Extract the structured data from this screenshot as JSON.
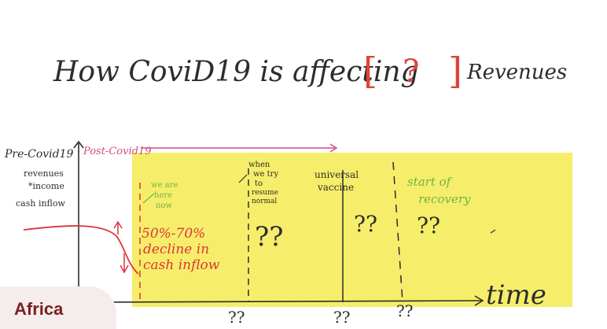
{
  "title": {
    "prefix": "How CoviD19 is affecting",
    "open_bracket": "[",
    "unknown": "?",
    "close_bracket": "]",
    "suffix": "Revenues"
  },
  "axis": {
    "pre_label": "Pre-Covid19",
    "post_label": "Post-Covid19",
    "y_label_lines": [
      "revenues",
      "*income",
      "cash inflow"
    ],
    "x_label": "time"
  },
  "phases": {
    "now": [
      "we are",
      "here",
      "now"
    ],
    "resume": [
      "when",
      "we try",
      "to",
      "resume",
      "normal"
    ],
    "vaccine": [
      "universal",
      "vaccine"
    ],
    "recovery": [
      "start of",
      "recovery"
    ]
  },
  "decline_text": [
    "50%-70%",
    "decline in",
    "cash inflow"
  ],
  "unknowns": {
    "resume": "??",
    "vaccine": "??",
    "recovery": "??",
    "below_1": "??",
    "below_2": "??",
    "below_3": "??"
  },
  "colors": {
    "highlight": "#f6ee6a",
    "ink": "#2d2d2d",
    "red": "#e0343a",
    "pink": "#d24a7c",
    "green": "#6fb443",
    "bracket": "#e0433a"
  },
  "badge": {
    "label": "Africa"
  }
}
